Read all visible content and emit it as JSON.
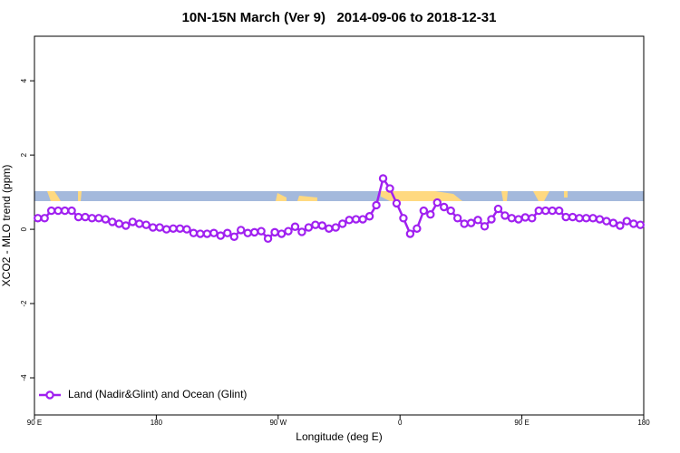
{
  "chart_data": {
    "type": "line",
    "title": "10N-15N March (Ver 9)   2014-09-06 to 2018-12-31",
    "xlabel": "Longitude (deg E)",
    "ylabel": "XCO2 - MLO trend (ppm)",
    "xlim": [
      90,
      540
    ],
    "ylim": [
      -5,
      5.2
    ],
    "xticks": [
      {
        "value": 90,
        "label": "90 E"
      },
      {
        "value": 180,
        "label": "180"
      },
      {
        "value": 270,
        "label": "90 W"
      },
      {
        "value": 360,
        "label": "0"
      },
      {
        "value": 450,
        "label": "90 E"
      },
      {
        "value": 540,
        "label": "180"
      }
    ],
    "yticks": [
      -4,
      -2,
      0,
      2,
      4
    ],
    "legend": "bottom-left",
    "x": [
      92.5,
      97.5,
      102.5,
      107.5,
      112.5,
      117.5,
      122.5,
      127.5,
      132.5,
      137.5,
      142.5,
      147.5,
      152.5,
      157.5,
      162.5,
      167.5,
      172.5,
      177.5,
      182.5,
      187.5,
      192.5,
      197.5,
      202.5,
      207.5,
      212.5,
      217.5,
      222.5,
      227.5,
      232.5,
      237.5,
      242.5,
      247.5,
      252.5,
      257.5,
      262.5,
      267.5,
      272.5,
      277.5,
      282.5,
      287.5,
      292.5,
      297.5,
      302.5,
      307.5,
      312.5,
      317.5,
      322.5,
      327.5,
      332.5,
      337.5,
      342.5,
      347.5,
      352.5,
      357.5,
      362.5,
      367.5,
      372.5,
      377.5,
      382.5,
      387.5,
      392.5,
      397.5,
      402.5,
      407.5,
      412.5,
      417.5,
      422.5,
      427.5,
      432.5,
      437.5,
      442.5,
      447.5,
      452.5,
      457.5,
      462.5,
      467.5,
      472.5,
      477.5,
      482.5,
      487.5,
      492.5,
      497.5,
      502.5,
      507.5,
      512.5,
      517.5,
      522.5,
      527.5,
      532.5,
      537.5
    ],
    "series": [
      {
        "name": "Land (Nadir&Glint) and Ocean (Glint)",
        "color": "#a020f0",
        "values": [
          0.3,
          0.3,
          0.5,
          0.5,
          0.5,
          0.5,
          0.33,
          0.33,
          0.3,
          0.3,
          0.27,
          0.2,
          0.15,
          0.1,
          0.2,
          0.15,
          0.12,
          0.05,
          0.05,
          0,
          0.02,
          0.02,
          0,
          -0.1,
          -0.12,
          -0.12,
          -0.1,
          -0.17,
          -0.1,
          -0.2,
          -0.02,
          -0.1,
          -0.08,
          -0.05,
          -0.25,
          -0.08,
          -0.12,
          -0.05,
          0.07,
          -0.07,
          0.05,
          0.12,
          0.1,
          0.02,
          0.05,
          0.15,
          0.25,
          0.27,
          0.27,
          0.35,
          0.65,
          1.37,
          1.1,
          0.7,
          0.3,
          -0.12,
          0.02,
          0.5,
          0.4,
          0.72,
          0.6,
          0.5,
          0.3,
          0.15,
          0.17,
          0.25,
          0.08,
          0.27,
          0.55,
          0.37,
          0.3,
          0.27,
          0.32,
          0.3,
          0.5,
          0.5,
          0.5,
          0.5,
          0.33,
          0.33,
          0.3,
          0.3,
          0.3,
          0.27,
          0.22,
          0.17,
          0.1,
          0.22,
          0.15,
          0.12
        ]
      }
    ]
  }
}
